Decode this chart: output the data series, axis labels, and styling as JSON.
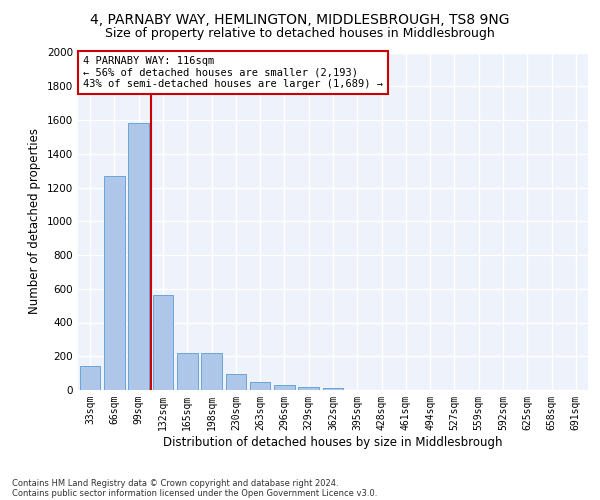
{
  "title": "4, PARNABY WAY, HEMLINGTON, MIDDLESBROUGH, TS8 9NG",
  "subtitle": "Size of property relative to detached houses in Middlesbrough",
  "xlabel": "Distribution of detached houses by size in Middlesbrough",
  "ylabel": "Number of detached properties",
  "footnote1": "Contains HM Land Registry data © Crown copyright and database right 2024.",
  "footnote2": "Contains public sector information licensed under the Open Government Licence v3.0.",
  "annotation_title": "4 PARNABY WAY: 116sqm",
  "annotation_line1": "← 56% of detached houses are smaller (2,193)",
  "annotation_line2": "43% of semi-detached houses are larger (1,689) →",
  "bar_labels": [
    "33sqm",
    "66sqm",
    "99sqm",
    "132sqm",
    "165sqm",
    "198sqm",
    "230sqm",
    "263sqm",
    "296sqm",
    "329sqm",
    "362sqm",
    "395sqm",
    "428sqm",
    "461sqm",
    "494sqm",
    "527sqm",
    "559sqm",
    "592sqm",
    "625sqm",
    "658sqm",
    "691sqm"
  ],
  "bar_values": [
    140,
    1270,
    1580,
    565,
    220,
    220,
    95,
    50,
    30,
    18,
    10,
    0,
    0,
    0,
    0,
    0,
    0,
    0,
    0,
    0,
    0
  ],
  "bar_color": "#aec6e8",
  "bar_edge_color": "#5b9bd5",
  "vline_color": "#cc0000",
  "annotation_box_color": "#cc0000",
  "ylim": [
    0,
    2000
  ],
  "yticks": [
    0,
    200,
    400,
    600,
    800,
    1000,
    1200,
    1400,
    1600,
    1800,
    2000
  ],
  "bg_color": "#eef2fa",
  "grid_color": "#ffffff",
  "title_fontsize": 10,
  "subtitle_fontsize": 9,
  "axis_label_fontsize": 8.5,
  "tick_fontsize": 7,
  "annotation_fontsize": 7.5,
  "footnote_fontsize": 6
}
